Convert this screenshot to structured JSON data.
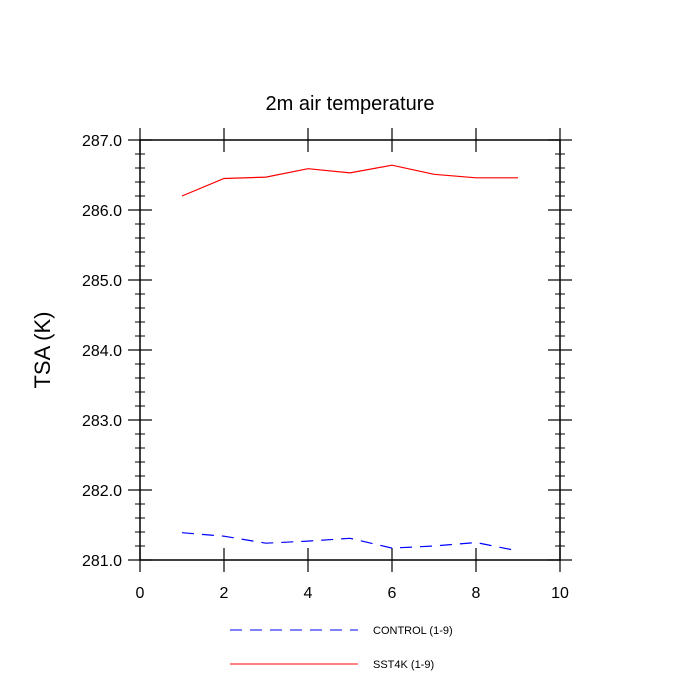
{
  "chart_data": {
    "type": "line",
    "title": "2m air temperature",
    "xlabel": "",
    "ylabel": "TSA  (K)",
    "xlim": [
      0,
      10
    ],
    "ylim": [
      281.0,
      287.0
    ],
    "x_ticks": [
      0,
      2,
      4,
      6,
      8,
      10
    ],
    "x_tick_labels": [
      "0",
      "2",
      "4",
      "6",
      "8",
      "10"
    ],
    "y_ticks": [
      281.0,
      282.0,
      283.0,
      284.0,
      285.0,
      286.0,
      287.0
    ],
    "y_tick_labels": [
      "281.0",
      "282.0",
      "283.0",
      "284.0",
      "285.0",
      "286.0",
      "287.0"
    ],
    "grid": false,
    "legend_position": "bottom",
    "x": [
      1,
      2,
      3,
      4,
      5,
      6,
      7,
      8,
      9
    ],
    "series": [
      {
        "name": "CONTROL (1-9)",
        "color": "#0000ff",
        "dash": "dashed",
        "values": [
          281.39,
          281.34,
          281.24,
          281.27,
          281.31,
          281.17,
          281.2,
          281.25,
          281.13
        ]
      },
      {
        "name": "SST4K (1-9)",
        "color": "#ff0000",
        "dash": "solid",
        "values": [
          286.2,
          286.45,
          286.47,
          286.59,
          286.53,
          286.64,
          286.51,
          286.46,
          286.46
        ]
      }
    ]
  }
}
